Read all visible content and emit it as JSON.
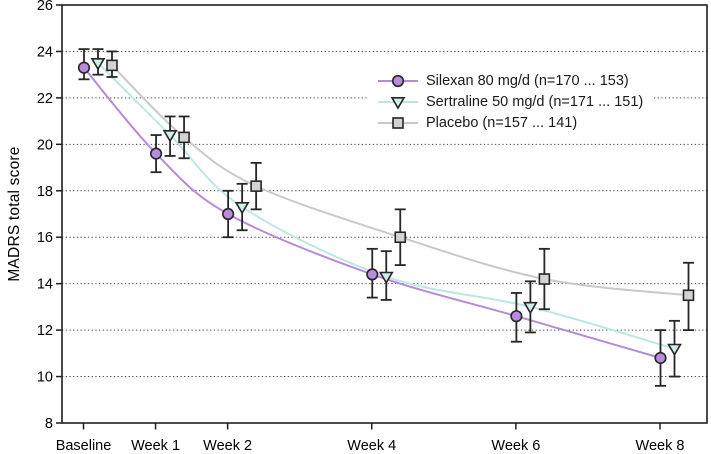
{
  "chart_data": {
    "type": "line",
    "title": "",
    "xlabel": "",
    "ylabel": "MADRS total score",
    "ylim": [
      8,
      26
    ],
    "ytick_step": 2,
    "grid": "horizontal-dotted",
    "legend_position": "upper-right-inside",
    "categories": [
      "Baseline",
      "Week 1",
      "Week 2",
      "Week 4",
      "Week 6",
      "Week 8"
    ],
    "x_weeks": [
      0,
      1,
      2,
      4,
      6,
      8
    ],
    "series": [
      {
        "name": "silexan",
        "label": "Silexan 80 mg/d (n=170 ... 153)",
        "marker": "circle",
        "line_color": "#b78ad9",
        "marker_fill": "#b98ade",
        "values": [
          23.3,
          19.6,
          17.0,
          14.4,
          12.6,
          10.8
        ],
        "ci_low": [
          22.8,
          18.8,
          16.0,
          13.4,
          11.5,
          9.6
        ],
        "ci_high": [
          24.1,
          20.4,
          18.0,
          15.5,
          13.6,
          12.0
        ]
      },
      {
        "name": "sertraline",
        "label": "Sertraline 50 mg/d (n=171 ... 151)",
        "marker": "triangle-down",
        "line_color": "#bce7e4",
        "marker_fill": "#cfeeec",
        "values": [
          23.5,
          20.4,
          17.3,
          14.3,
          13.0,
          11.2
        ],
        "ci_low": [
          23.0,
          19.5,
          16.3,
          13.3,
          11.9,
          10.0
        ],
        "ci_high": [
          24.1,
          21.2,
          18.3,
          15.4,
          14.1,
          12.4
        ]
      },
      {
        "name": "placebo",
        "label": "Placebo (n=157 ... 141)",
        "marker": "square",
        "line_color": "#c9c9c9",
        "marker_fill": "#d3d3d3",
        "values": [
          23.4,
          20.3,
          18.2,
          16.0,
          14.2,
          13.5
        ],
        "ci_low": [
          22.9,
          19.4,
          17.2,
          14.8,
          12.9,
          12.0
        ],
        "ci_high": [
          24.0,
          21.2,
          19.2,
          17.2,
          15.5,
          14.9
        ]
      }
    ],
    "colors": {
      "axis": "#1f1f1f",
      "grid": "#4a4a4a",
      "error_bar": "#262626",
      "marker_stroke": "#262626",
      "text": "#000000"
    }
  }
}
